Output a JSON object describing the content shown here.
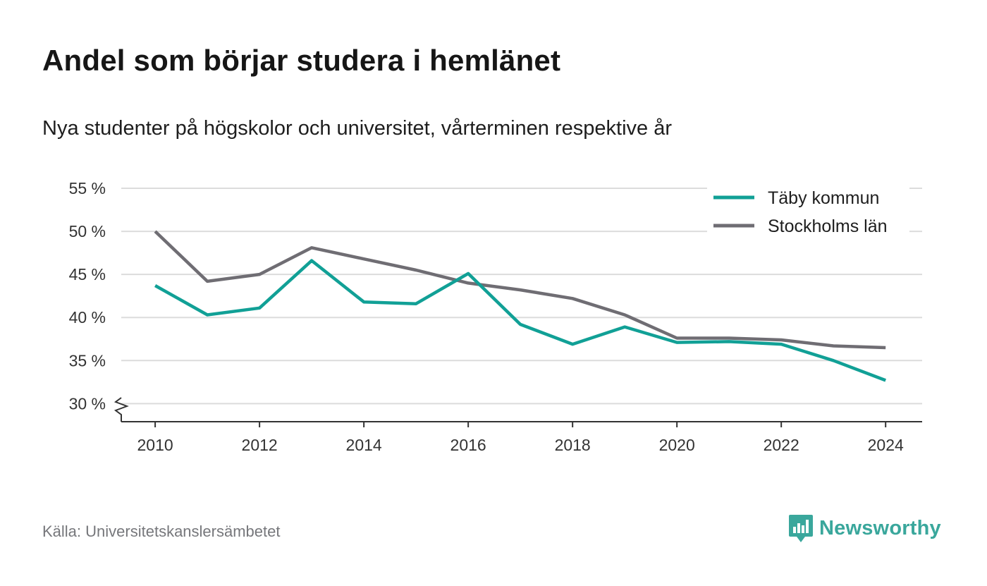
{
  "title": "Andel som börjar studera i hemlänet",
  "subtitle": "Nya studenter på högskolor och universitet, vårterminen respektive år",
  "source": "Källa: Universitetskanslersämbetet",
  "brand": {
    "name": "Newsworthy",
    "color": "#3aa79c",
    "icon": "newsworthy-logo-icon"
  },
  "chart_data": {
    "type": "line",
    "x": [
      2010,
      2011,
      2012,
      2013,
      2014,
      2015,
      2016,
      2017,
      2018,
      2019,
      2020,
      2021,
      2022,
      2023,
      2024
    ],
    "series": [
      {
        "name": "Täby kommun",
        "color": "#11a096",
        "values": [
          43.7,
          40.3,
          41.1,
          46.6,
          41.8,
          41.6,
          45.1,
          39.2,
          36.9,
          38.9,
          37.1,
          37.2,
          36.9,
          35.0,
          32.7
        ]
      },
      {
        "name": "Stockholms län",
        "color": "#6f6d73",
        "values": [
          50.0,
          44.2,
          45.0,
          48.1,
          46.8,
          45.5,
          44.0,
          43.2,
          42.2,
          40.3,
          37.6,
          37.6,
          37.4,
          36.7,
          36.5
        ]
      }
    ],
    "xticks": [
      2010,
      2012,
      2014,
      2016,
      2018,
      2020,
      2022,
      2024
    ],
    "xtick_labels": [
      "2010",
      "2012",
      "2014",
      "2016",
      "2018",
      "2020",
      "2022",
      "2024"
    ],
    "yticks": [
      30,
      35,
      40,
      45,
      50,
      55
    ],
    "ytick_labels": [
      "30 %",
      "35 %",
      "40 %",
      "45 %",
      "50 %",
      "55 %"
    ],
    "ylim": [
      27.9,
      55
    ],
    "xlim": [
      2009.35,
      2024.7
    ],
    "grid": true,
    "legend_position": "top-right",
    "axis_break": true
  }
}
